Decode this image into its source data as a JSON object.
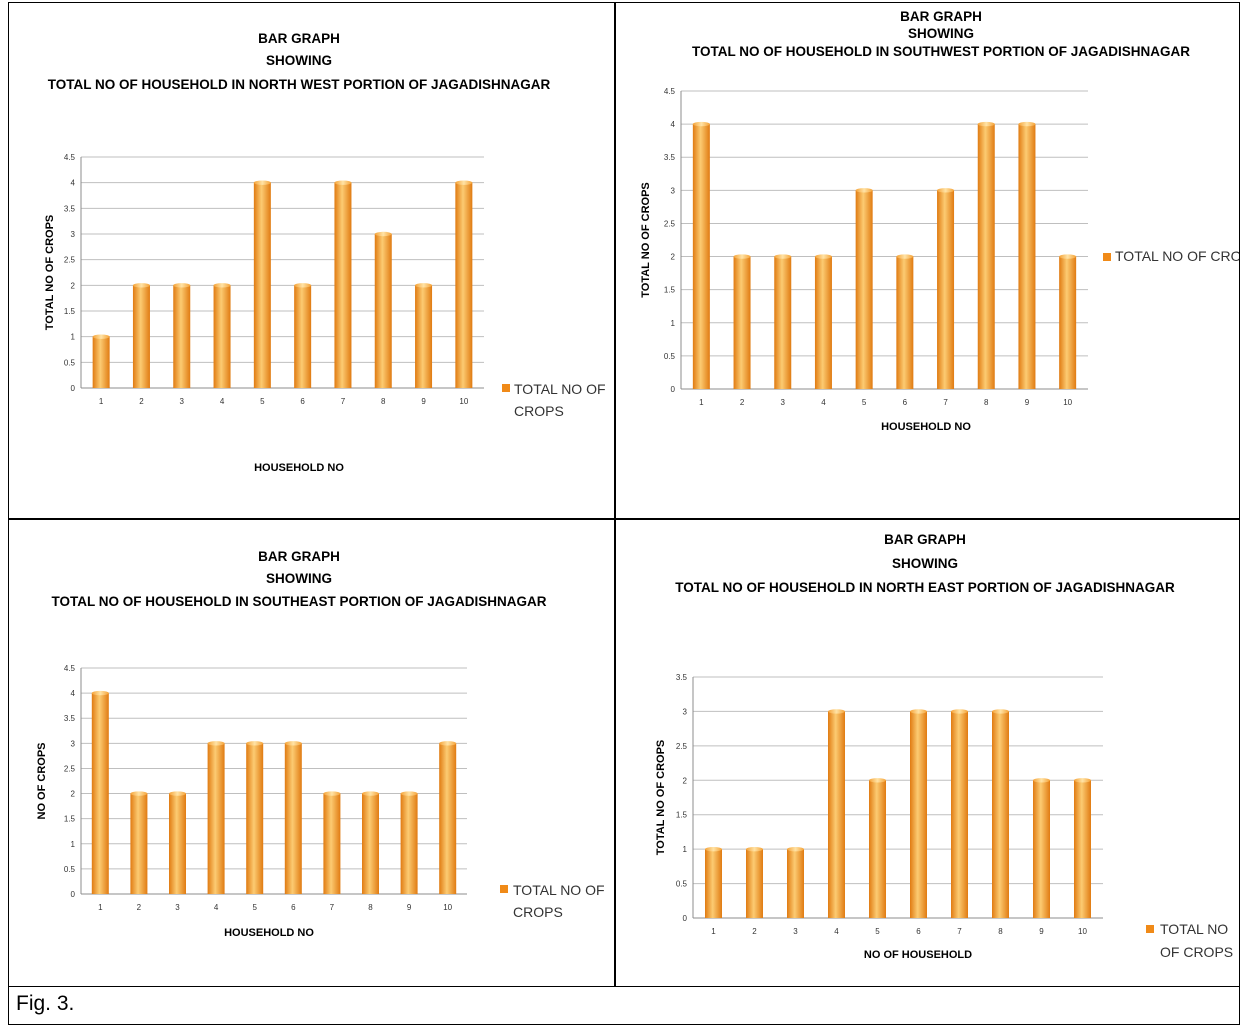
{
  "caption": "Fig. 3.",
  "colors": {
    "bar_light": "#FCCB72",
    "bar_mid": "#F5A236",
    "bar_dark": "#E07B12",
    "legend": "#F08A18",
    "grid": "#BFBFBF"
  },
  "chart_data": [
    {
      "type": "bar",
      "title": [
        "BAR GRAPH",
        "SHOWING",
        "TOTAL NO OF HOUSEHOLD IN NORTH WEST PORTION OF JAGADISHNAGAR"
      ],
      "xlabel": "HOUSEHOLD NO",
      "ylabel": "TOTAL NO OF CROPS",
      "categories": [
        "1",
        "2",
        "3",
        "4",
        "5",
        "6",
        "7",
        "8",
        "9",
        "10"
      ],
      "series": [
        {
          "name": [
            "TOTAL NO OF",
            "CROPS"
          ],
          "values": [
            1,
            2,
            2,
            2,
            4,
            2,
            4,
            3,
            2,
            4
          ]
        }
      ],
      "yticks": [
        "0",
        "0.5",
        "1",
        "1.5",
        "2",
        "2.5",
        "3",
        "3.5",
        "4",
        "4.5"
      ],
      "ylim": [
        0,
        4.5
      ],
      "grid": true,
      "legend": "right"
    },
    {
      "type": "bar",
      "title": [
        "BAR GRAPH",
        "SHOWING",
        "TOTAL NO OF HOUSEHOLD IN SOUTHWEST PORTION OF JAGADISHNAGAR"
      ],
      "xlabel": "HOUSEHOLD NO",
      "ylabel": "TOTAL NO OF CROPS",
      "categories": [
        "1",
        "2",
        "3",
        "4",
        "5",
        "6",
        "7",
        "8",
        "9",
        "10"
      ],
      "series": [
        {
          "name": [
            "TOTAL NO OF CROPS"
          ],
          "values": [
            4,
            2,
            2,
            2,
            3,
            2,
            3,
            4,
            4,
            2
          ]
        }
      ],
      "yticks": [
        "0",
        "0.5",
        "1",
        "1.5",
        "2",
        "2.5",
        "3",
        "3.5",
        "4",
        "4.5"
      ],
      "ylim": [
        0,
        4.5
      ],
      "grid": true,
      "legend": "right"
    },
    {
      "type": "bar",
      "title": [
        "BAR GRAPH",
        "SHOWING",
        "TOTAL NO OF HOUSEHOLD IN SOUTHEAST PORTION OF JAGADISHNAGAR"
      ],
      "xlabel": "HOUSEHOLD NO",
      "ylabel": "NO OF CROPS",
      "categories": [
        "1",
        "2",
        "3",
        "4",
        "5",
        "6",
        "7",
        "8",
        "9",
        "10"
      ],
      "series": [
        {
          "name": [
            "TOTAL NO OF",
            "CROPS"
          ],
          "values": [
            4,
            2,
            2,
            3,
            3,
            3,
            2,
            2,
            2,
            3
          ]
        }
      ],
      "yticks": [
        "0",
        "0.5",
        "1",
        "1.5",
        "2",
        "2.5",
        "3",
        "3.5",
        "4",
        "4.5"
      ],
      "ylim": [
        0,
        4.5
      ],
      "grid": true,
      "legend": "right"
    },
    {
      "type": "bar",
      "title": [
        "BAR GRAPH",
        "SHOWING",
        "TOTAL NO OF HOUSEHOLD IN NORTH EAST PORTION OF JAGADISHNAGAR"
      ],
      "xlabel": "NO OF HOUSEHOLD",
      "ylabel": "TOTAL NO OF CROPS",
      "categories": [
        "1",
        "2",
        "3",
        "4",
        "5",
        "6",
        "7",
        "8",
        "9",
        "10"
      ],
      "series": [
        {
          "name": [
            "TOTAL NO",
            "OF CROPS"
          ],
          "values": [
            1,
            1,
            1,
            3,
            2,
            3,
            3,
            3,
            2,
            2
          ]
        }
      ],
      "yticks": [
        "0",
        "0.5",
        "1",
        "1.5",
        "2",
        "2.5",
        "3",
        "3.5"
      ],
      "ylim": [
        0,
        3.5
      ],
      "grid": true,
      "legend": "right"
    }
  ]
}
